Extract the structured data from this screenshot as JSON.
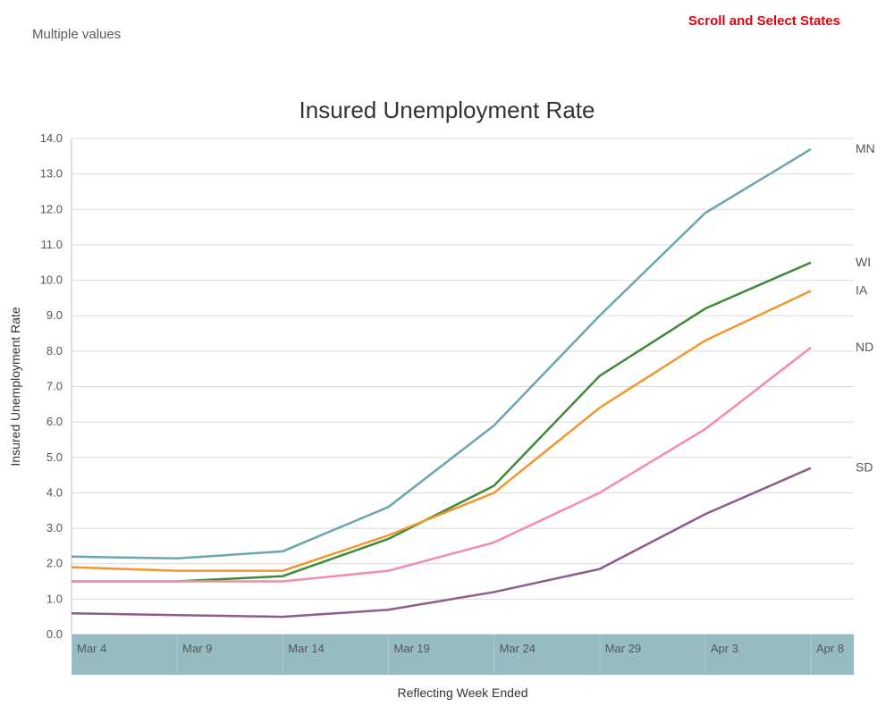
{
  "header": {
    "multiple_values": "Multiple values",
    "scroll_select": "Scroll and Select States"
  },
  "chart": {
    "type": "line",
    "title": "Insured Unemployment Rate",
    "title_fontsize": 26,
    "title_color": "#333333",
    "background_color": "#ffffff",
    "ylabel": "Insured Unemployment Rate",
    "xlabel": "Reflecting Week Ended",
    "label_fontsize": 14,
    "tick_fontsize": 13,
    "ylim": [
      0.0,
      14.0
    ],
    "ytick_step": 1.0,
    "y_decimal_places": 1,
    "grid_color": "#d9d9d9",
    "axis_color": "#bfbfbf",
    "line_width": 2.5,
    "x_band_color": "#84b0b7",
    "x_categories": [
      "Mar 4",
      "Mar 9",
      "Mar 14",
      "Mar 19",
      "Mar 24",
      "Mar 29",
      "Apr 3",
      "Apr 8"
    ],
    "series": [
      {
        "name": "MN",
        "color": "#69a6af",
        "values": [
          2.2,
          2.15,
          2.35,
          3.6,
          5.9,
          9.0,
          11.9,
          13.7
        ],
        "label": "MN"
      },
      {
        "name": "WI",
        "color": "#3f8a3a",
        "values": [
          1.5,
          1.5,
          1.65,
          2.7,
          4.2,
          7.3,
          9.2,
          10.5
        ],
        "label": "WI"
      },
      {
        "name": "IA",
        "color": "#f0962d",
        "values": [
          1.9,
          1.8,
          1.8,
          2.8,
          4.0,
          6.4,
          8.3,
          9.7
        ],
        "label": "IA"
      },
      {
        "name": "ND",
        "color": "#f58ca6",
        "values": [
          1.5,
          1.5,
          1.5,
          1.8,
          2.6,
          4.0,
          5.8,
          8.1
        ],
        "label": "ND"
      },
      {
        "name": "SD",
        "color": "#8e5b8c",
        "values": [
          0.6,
          0.55,
          0.5,
          0.7,
          1.2,
          1.85,
          3.4,
          4.7
        ],
        "label": "SD"
      }
    ]
  }
}
